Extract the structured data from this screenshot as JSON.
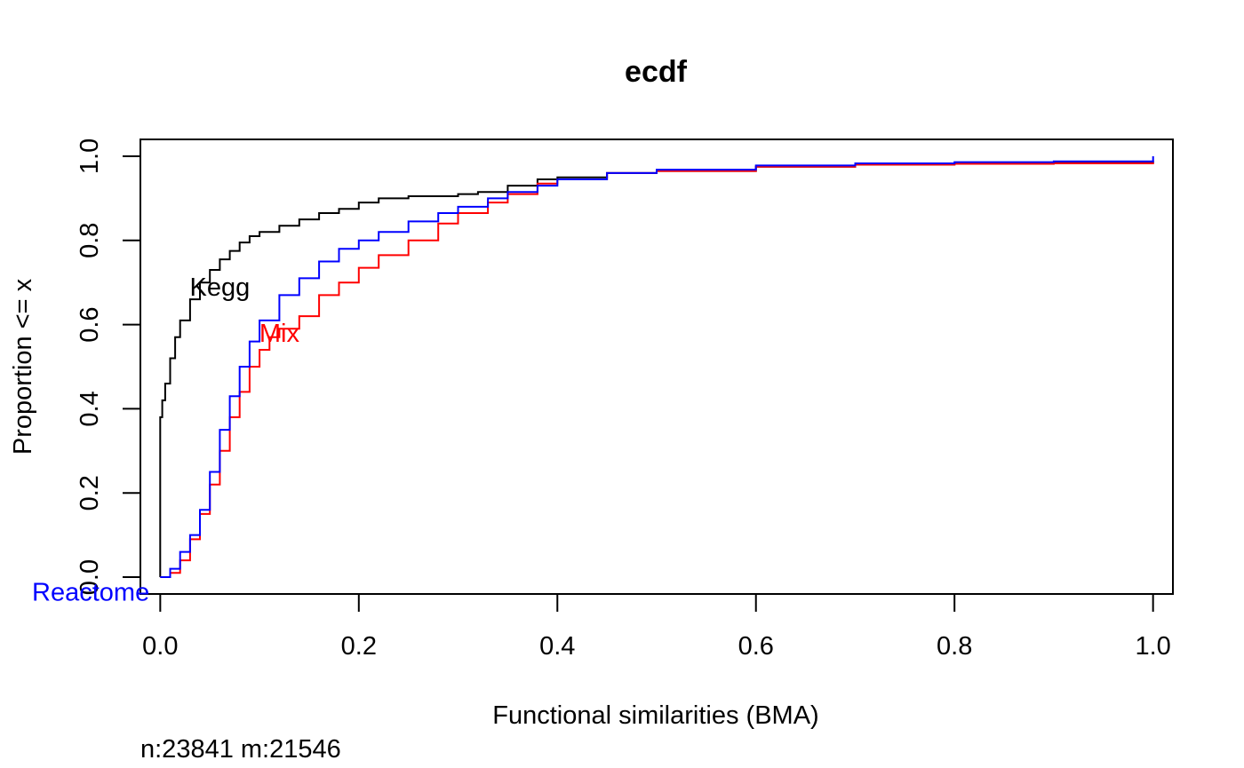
{
  "chart_data": {
    "type": "line",
    "title": "ecdf",
    "xlabel": "Functional similarities (BMA)",
    "ylabel": "Proportion <= x",
    "annotation": "n:23841 m:21546",
    "xlim": [
      -0.02,
      1.02
    ],
    "ylim": [
      -0.04,
      1.04
    ],
    "x_ticks": [
      "0.0",
      "0.2",
      "0.4",
      "0.6",
      "0.8",
      "1.0"
    ],
    "y_ticks": [
      "0.0",
      "0.2",
      "0.4",
      "0.6",
      "0.8",
      "1.0"
    ],
    "grid": false,
    "legend": "none",
    "series": [
      {
        "name": "Kegg",
        "color": "#000000",
        "label_at": [
          0.06,
          0.69
        ],
        "points": [
          [
            0,
            0
          ],
          [
            0,
            0.38
          ],
          [
            0.002,
            0.42
          ],
          [
            0.005,
            0.46
          ],
          [
            0.01,
            0.52
          ],
          [
            0.015,
            0.57
          ],
          [
            0.02,
            0.61
          ],
          [
            0.03,
            0.66
          ],
          [
            0.04,
            0.7
          ],
          [
            0.05,
            0.73
          ],
          [
            0.06,
            0.755
          ],
          [
            0.07,
            0.775
          ],
          [
            0.08,
            0.795
          ],
          [
            0.09,
            0.81
          ],
          [
            0.1,
            0.82
          ],
          [
            0.12,
            0.835
          ],
          [
            0.14,
            0.85
          ],
          [
            0.16,
            0.865
          ],
          [
            0.18,
            0.875
          ],
          [
            0.2,
            0.89
          ],
          [
            0.22,
            0.9
          ],
          [
            0.25,
            0.905
          ],
          [
            0.3,
            0.91
          ],
          [
            0.32,
            0.915
          ],
          [
            0.35,
            0.93
          ],
          [
            0.38,
            0.945
          ],
          [
            0.4,
            0.95
          ],
          [
            0.45,
            0.96
          ],
          [
            0.5,
            0.965
          ],
          [
            0.6,
            0.975
          ],
          [
            0.7,
            0.98
          ],
          [
            0.8,
            0.983
          ],
          [
            0.9,
            0.985
          ],
          [
            1.0,
            0.985
          ],
          [
            1.0,
            0.99
          ]
        ]
      },
      {
        "name": "Mix",
        "color": "#ff0000",
        "label_at": [
          0.12,
          0.58
        ],
        "points": [
          [
            0,
            0
          ],
          [
            0.01,
            0.01
          ],
          [
            0.02,
            0.04
          ],
          [
            0.03,
            0.09
          ],
          [
            0.04,
            0.15
          ],
          [
            0.05,
            0.22
          ],
          [
            0.06,
            0.3
          ],
          [
            0.07,
            0.38
          ],
          [
            0.08,
            0.44
          ],
          [
            0.09,
            0.5
          ],
          [
            0.1,
            0.54
          ],
          [
            0.11,
            0.57
          ],
          [
            0.12,
            0.59
          ],
          [
            0.14,
            0.62
          ],
          [
            0.16,
            0.67
          ],
          [
            0.18,
            0.7
          ],
          [
            0.2,
            0.735
          ],
          [
            0.22,
            0.765
          ],
          [
            0.25,
            0.8
          ],
          [
            0.28,
            0.84
          ],
          [
            0.3,
            0.865
          ],
          [
            0.33,
            0.89
          ],
          [
            0.35,
            0.91
          ],
          [
            0.38,
            0.935
          ],
          [
            0.4,
            0.945
          ],
          [
            0.45,
            0.96
          ],
          [
            0.5,
            0.965
          ],
          [
            0.6,
            0.975
          ],
          [
            0.7,
            0.98
          ],
          [
            0.8,
            0.982
          ],
          [
            0.9,
            0.983
          ],
          [
            1.0,
            0.985
          ]
        ]
      },
      {
        "name": "Reactome",
        "color": "#0000ff",
        "label_at": [
          -0.07,
          -0.035
        ],
        "points": [
          [
            0,
            0
          ],
          [
            0.01,
            0.02
          ],
          [
            0.02,
            0.06
          ],
          [
            0.03,
            0.1
          ],
          [
            0.04,
            0.16
          ],
          [
            0.05,
            0.25
          ],
          [
            0.06,
            0.35
          ],
          [
            0.07,
            0.43
          ],
          [
            0.08,
            0.5
          ],
          [
            0.09,
            0.56
          ],
          [
            0.1,
            0.61
          ],
          [
            0.12,
            0.67
          ],
          [
            0.14,
            0.71
          ],
          [
            0.16,
            0.75
          ],
          [
            0.18,
            0.78
          ],
          [
            0.2,
            0.8
          ],
          [
            0.22,
            0.82
          ],
          [
            0.25,
            0.845
          ],
          [
            0.28,
            0.865
          ],
          [
            0.3,
            0.88
          ],
          [
            0.33,
            0.9
          ],
          [
            0.35,
            0.915
          ],
          [
            0.38,
            0.93
          ],
          [
            0.4,
            0.945
          ],
          [
            0.45,
            0.96
          ],
          [
            0.5,
            0.968
          ],
          [
            0.6,
            0.978
          ],
          [
            0.7,
            0.983
          ],
          [
            0.8,
            0.986
          ],
          [
            0.9,
            0.988
          ],
          [
            1.0,
            0.99
          ],
          [
            1.0,
            1.0
          ]
        ]
      }
    ]
  }
}
